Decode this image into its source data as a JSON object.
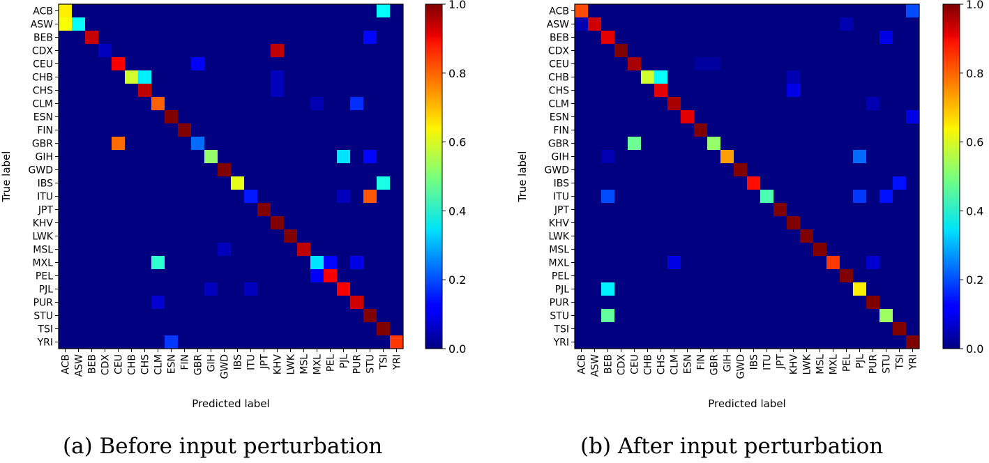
{
  "chart_data": [
    {
      "type": "heatmap",
      "title": "",
      "caption": "(a) Before input perturbation",
      "xlabel": "Predicted label",
      "ylabel": "True label",
      "x_categories": [
        "ACB",
        "ASW",
        "BEB",
        "CDX",
        "CEU",
        "CHB",
        "CHS",
        "CLM",
        "ESN",
        "FIN",
        "GBR",
        "GIH",
        "GWD",
        "IBS",
        "ITU",
        "JPT",
        "KHV",
        "LWK",
        "MSL",
        "MXL",
        "PEL",
        "PJL",
        "PUR",
        "STU",
        "TSI",
        "YRI"
      ],
      "y_categories": [
        "ACB",
        "ASW",
        "BEB",
        "CDX",
        "CEU",
        "CHB",
        "CHS",
        "CLM",
        "ESN",
        "FIN",
        "GBR",
        "GIH",
        "GWD",
        "IBS",
        "ITU",
        "JPT",
        "KHV",
        "LWK",
        "MSL",
        "MXL",
        "PEL",
        "PJL",
        "PUR",
        "STU",
        "TSI",
        "YRI"
      ],
      "colorbar": {
        "ticks": [
          "0.0",
          "0.2",
          "0.4",
          "0.6",
          "0.8",
          "1.0"
        ],
        "range": [
          0,
          1
        ]
      },
      "nonzero_cells": [
        {
          "row": "ACB",
          "col": "ACB",
          "value": 0.64
        },
        {
          "row": "ACB",
          "col": "TSI",
          "value": 0.38
        },
        {
          "row": "ASW",
          "col": "ACB",
          "value": 0.62
        },
        {
          "row": "ASW",
          "col": "ASW",
          "value": 0.38
        },
        {
          "row": "BEB",
          "col": "BEB",
          "value": 0.93
        },
        {
          "row": "BEB",
          "col": "STU",
          "value": 0.13
        },
        {
          "row": "CDX",
          "col": "CDX",
          "value": 0.06
        },
        {
          "row": "CDX",
          "col": "KHV",
          "value": 0.94
        },
        {
          "row": "CEU",
          "col": "CEU",
          "value": 0.88
        },
        {
          "row": "CEU",
          "col": "GBR",
          "value": 0.12
        },
        {
          "row": "CHB",
          "col": "CHB",
          "value": 0.58
        },
        {
          "row": "CHB",
          "col": "CHS",
          "value": 0.36
        },
        {
          "row": "CHB",
          "col": "KHV",
          "value": 0.06
        },
        {
          "row": "CHS",
          "col": "CHS",
          "value": 0.94
        },
        {
          "row": "CHS",
          "col": "KHV",
          "value": 0.06
        },
        {
          "row": "CLM",
          "col": "CLM",
          "value": 0.78
        },
        {
          "row": "CLM",
          "col": "MXL",
          "value": 0.05
        },
        {
          "row": "CLM",
          "col": "PUR",
          "value": 0.17
        },
        {
          "row": "ESN",
          "col": "ESN",
          "value": 1.0
        },
        {
          "row": "FIN",
          "col": "FIN",
          "value": 1.0
        },
        {
          "row": "GBR",
          "col": "CEU",
          "value": 0.77
        },
        {
          "row": "GBR",
          "col": "GBR",
          "value": 0.23
        },
        {
          "row": "GIH",
          "col": "GIH",
          "value": 0.52
        },
        {
          "row": "GIH",
          "col": "PJL",
          "value": 0.35
        },
        {
          "row": "GIH",
          "col": "STU",
          "value": 0.13
        },
        {
          "row": "GWD",
          "col": "GWD",
          "value": 1.0
        },
        {
          "row": "IBS",
          "col": "IBS",
          "value": 0.6
        },
        {
          "row": "IBS",
          "col": "TSI",
          "value": 0.4
        },
        {
          "row": "ITU",
          "col": "ITU",
          "value": 0.15
        },
        {
          "row": "ITU",
          "col": "PJL",
          "value": 0.06
        },
        {
          "row": "ITU",
          "col": "STU",
          "value": 0.79
        },
        {
          "row": "JPT",
          "col": "JPT",
          "value": 1.0
        },
        {
          "row": "KHV",
          "col": "KHV",
          "value": 1.0
        },
        {
          "row": "LWK",
          "col": "LWK",
          "value": 1.0
        },
        {
          "row": "MSL",
          "col": "GWD",
          "value": 0.06
        },
        {
          "row": "MSL",
          "col": "MSL",
          "value": 0.94
        },
        {
          "row": "MXL",
          "col": "CLM",
          "value": 0.42
        },
        {
          "row": "MXL",
          "col": "MXL",
          "value": 0.35
        },
        {
          "row": "MXL",
          "col": "PEL",
          "value": 0.13
        },
        {
          "row": "MXL",
          "col": "PUR",
          "value": 0.1
        },
        {
          "row": "PEL",
          "col": "MXL",
          "value": 0.12
        },
        {
          "row": "PEL",
          "col": "PEL",
          "value": 0.88
        },
        {
          "row": "PJL",
          "col": "GIH",
          "value": 0.06
        },
        {
          "row": "PJL",
          "col": "ITU",
          "value": 0.06
        },
        {
          "row": "PJL",
          "col": "PJL",
          "value": 0.88
        },
        {
          "row": "PUR",
          "col": "CLM",
          "value": 0.08
        },
        {
          "row": "PUR",
          "col": "PUR",
          "value": 0.92
        },
        {
          "row": "STU",
          "col": "STU",
          "value": 1.0
        },
        {
          "row": "TSI",
          "col": "TSI",
          "value": 1.0
        },
        {
          "row": "YRI",
          "col": "ESN",
          "value": 0.18
        },
        {
          "row": "YRI",
          "col": "YRI",
          "value": 0.82
        }
      ]
    },
    {
      "type": "heatmap",
      "title": "",
      "caption": "(b) After input perturbation",
      "xlabel": "Predicted label",
      "ylabel": "True label",
      "x_categories": [
        "ACB",
        "ASW",
        "BEB",
        "CDX",
        "CEU",
        "CHB",
        "CHS",
        "CLM",
        "ESN",
        "FIN",
        "GBR",
        "GIH",
        "GWD",
        "IBS",
        "ITU",
        "JPT",
        "KHV",
        "LWK",
        "MSL",
        "MXL",
        "PEL",
        "PJL",
        "PUR",
        "STU",
        "TSI",
        "YRI"
      ],
      "y_categories": [
        "ACB",
        "ASW",
        "BEB",
        "CDX",
        "CEU",
        "CHB",
        "CHS",
        "CLM",
        "ESN",
        "FIN",
        "GBR",
        "GIH",
        "GWD",
        "IBS",
        "ITU",
        "JPT",
        "KHV",
        "LWK",
        "MSL",
        "MXL",
        "PEL",
        "PJL",
        "PUR",
        "STU",
        "TSI",
        "YRI"
      ],
      "colorbar": {
        "ticks": [
          "0.0",
          "0.2",
          "0.4",
          "0.6",
          "0.8",
          "1.0"
        ],
        "range": [
          0,
          1
        ]
      },
      "nonzero_cells": [
        {
          "row": "ACB",
          "col": "ACB",
          "value": 0.8
        },
        {
          "row": "ACB",
          "col": "YRI",
          "value": 0.2
        },
        {
          "row": "ASW",
          "col": "ACB",
          "value": 0.05
        },
        {
          "row": "ASW",
          "col": "ASW",
          "value": 0.92
        },
        {
          "row": "ASW",
          "col": "PEL",
          "value": 0.05
        },
        {
          "row": "BEB",
          "col": "BEB",
          "value": 0.9
        },
        {
          "row": "BEB",
          "col": "STU",
          "value": 0.1
        },
        {
          "row": "CDX",
          "col": "CDX",
          "value": 1.0
        },
        {
          "row": "CEU",
          "col": "CEU",
          "value": 0.96
        },
        {
          "row": "CEU",
          "col": "FIN",
          "value": 0.03
        },
        {
          "row": "CEU",
          "col": "GBR",
          "value": 0.03
        },
        {
          "row": "CHB",
          "col": "CHB",
          "value": 0.58
        },
        {
          "row": "CHB",
          "col": "CHS",
          "value": 0.38
        },
        {
          "row": "CHB",
          "col": "KHV",
          "value": 0.05
        },
        {
          "row": "CHS",
          "col": "CHS",
          "value": 0.9
        },
        {
          "row": "CHS",
          "col": "KHV",
          "value": 0.1
        },
        {
          "row": "CLM",
          "col": "CLM",
          "value": 0.96
        },
        {
          "row": "CLM",
          "col": "PUR",
          "value": 0.05
        },
        {
          "row": "ESN",
          "col": "ESN",
          "value": 0.9
        },
        {
          "row": "ESN",
          "col": "YRI",
          "value": 0.1
        },
        {
          "row": "FIN",
          "col": "FIN",
          "value": 1.0
        },
        {
          "row": "GBR",
          "col": "CEU",
          "value": 0.48
        },
        {
          "row": "GBR",
          "col": "GBR",
          "value": 0.52
        },
        {
          "row": "GIH",
          "col": "BEB",
          "value": 0.05
        },
        {
          "row": "GIH",
          "col": "GIH",
          "value": 0.72
        },
        {
          "row": "GIH",
          "col": "PJL",
          "value": 0.23
        },
        {
          "row": "GWD",
          "col": "GWD",
          "value": 1.0
        },
        {
          "row": "IBS",
          "col": "IBS",
          "value": 0.86
        },
        {
          "row": "IBS",
          "col": "TSI",
          "value": 0.14
        },
        {
          "row": "ITU",
          "col": "BEB",
          "value": 0.2
        },
        {
          "row": "ITU",
          "col": "ITU",
          "value": 0.45
        },
        {
          "row": "ITU",
          "col": "PJL",
          "value": 0.18
        },
        {
          "row": "ITU",
          "col": "STU",
          "value": 0.14
        },
        {
          "row": "JPT",
          "col": "JPT",
          "value": 1.0
        },
        {
          "row": "KHV",
          "col": "KHV",
          "value": 1.0
        },
        {
          "row": "LWK",
          "col": "LWK",
          "value": 1.0
        },
        {
          "row": "MSL",
          "col": "MSL",
          "value": 1.0
        },
        {
          "row": "MXL",
          "col": "CLM",
          "value": 0.1
        },
        {
          "row": "MXL",
          "col": "MXL",
          "value": 0.82
        },
        {
          "row": "MXL",
          "col": "PUR",
          "value": 0.08
        },
        {
          "row": "PEL",
          "col": "PEL",
          "value": 1.0
        },
        {
          "row": "PJL",
          "col": "BEB",
          "value": 0.36
        },
        {
          "row": "PJL",
          "col": "PJL",
          "value": 0.64
        },
        {
          "row": "PUR",
          "col": "PUR",
          "value": 1.0
        },
        {
          "row": "STU",
          "col": "BEB",
          "value": 0.47
        },
        {
          "row": "STU",
          "col": "STU",
          "value": 0.53
        },
        {
          "row": "TSI",
          "col": "TSI",
          "value": 1.0
        },
        {
          "row": "YRI",
          "col": "YRI",
          "value": 1.0
        }
      ]
    }
  ]
}
